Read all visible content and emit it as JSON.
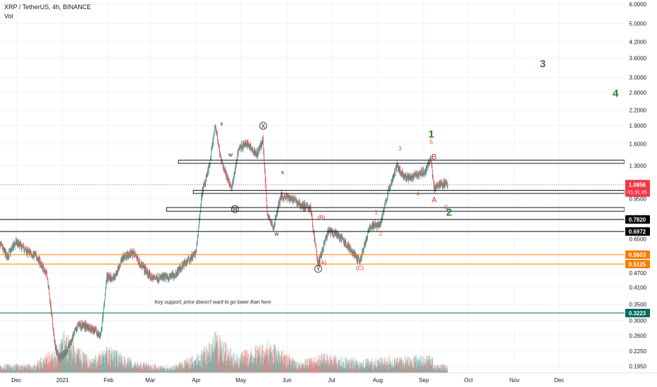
{
  "header": {
    "title": "XRP / TetherUS, 4h, BINANCE",
    "volume_label": "Vol"
  },
  "chart_data": {
    "type": "candlestick",
    "symbol": "XRP / TetherUS",
    "interval": "4h",
    "exchange": "BINANCE",
    "scale": "log",
    "ylim": [
      0.19,
      6.2
    ],
    "y_ticks": [
      "6.0000",
      "5.0000",
      "4.2000",
      "3.6000",
      "3.0000",
      "2.6000",
      "2.2000",
      "1.9000",
      "1.6000",
      "1.3000",
      "0.9500",
      "0.8000",
      "0.6500",
      "0.5500",
      "0.4700",
      "0.4100",
      "0.3500",
      "0.3000",
      "0.2600",
      "0.2250",
      "0.1950"
    ],
    "x_ticks": [
      "Dec",
      "2021",
      "Feb",
      "Mar",
      "Apr",
      "May",
      "Jun",
      "Jul",
      "Aug",
      "Sep",
      "Oct",
      "Nov",
      "Dec"
    ],
    "x_tick_dates": [
      "2020-12-01",
      "2021-01-01",
      "2021-02-01",
      "2021-03-01",
      "2021-04-01",
      "2021-05-01",
      "2021-06-01",
      "2021-07-01",
      "2021-08-01",
      "2021-09-01",
      "2021-10-01",
      "2021-11-01",
      "2021-12-01"
    ],
    "x_range": [
      "2020-11-20",
      "2022-01-14"
    ],
    "last_price": {
      "value": "1.0856",
      "countdown": "01:31:45"
    },
    "price_path": [
      [
        "2020-11-20",
        0.62
      ],
      [
        "2020-11-25",
        0.55
      ],
      [
        "2020-12-01",
        0.63
      ],
      [
        "2020-12-08",
        0.58
      ],
      [
        "2020-12-15",
        0.55
      ],
      [
        "2020-12-22",
        0.46
      ],
      [
        "2020-12-27",
        0.24
      ],
      [
        "2020-12-30",
        0.21
      ],
      [
        "2021-01-05",
        0.23
      ],
      [
        "2021-01-12",
        0.29
      ],
      [
        "2021-01-20",
        0.28
      ],
      [
        "2021-01-27",
        0.26
      ],
      [
        "2021-01-31",
        0.45
      ],
      [
        "2021-02-05",
        0.45
      ],
      [
        "2021-02-11",
        0.55
      ],
      [
        "2021-02-18",
        0.57
      ],
      [
        "2021-02-24",
        0.5
      ],
      [
        "2021-03-02",
        0.45
      ],
      [
        "2021-03-10",
        0.45
      ],
      [
        "2021-03-17",
        0.46
      ],
      [
        "2021-03-25",
        0.52
      ],
      [
        "2021-04-01",
        0.57
      ],
      [
        "2021-04-05",
        1.0
      ],
      [
        "2021-04-10",
        1.3
      ],
      [
        "2021-04-14",
        1.9
      ],
      [
        "2021-04-18",
        1.35
      ],
      [
        "2021-04-25",
        1.05
      ],
      [
        "2021-04-30",
        1.55
      ],
      [
        "2021-05-06",
        1.6
      ],
      [
        "2021-05-12",
        1.45
      ],
      [
        "2021-05-16",
        1.65
      ],
      [
        "2021-05-19",
        0.82
      ],
      [
        "2021-05-23",
        0.72
      ],
      [
        "2021-05-28",
        0.98
      ],
      [
        "2021-06-04",
        0.96
      ],
      [
        "2021-06-10",
        0.9
      ],
      [
        "2021-06-17",
        0.87
      ],
      [
        "2021-06-22",
        0.51
      ],
      [
        "2021-06-29",
        0.7
      ],
      [
        "2021-07-06",
        0.67
      ],
      [
        "2021-07-13",
        0.6
      ],
      [
        "2021-07-20",
        0.52
      ],
      [
        "2021-07-27",
        0.73
      ],
      [
        "2021-08-03",
        0.75
      ],
      [
        "2021-08-08",
        1.0
      ],
      [
        "2021-08-14",
        1.3
      ],
      [
        "2021-08-20",
        1.15
      ],
      [
        "2021-08-27",
        1.2
      ],
      [
        "2021-09-02",
        1.22
      ],
      [
        "2021-09-06",
        1.4
      ],
      [
        "2021-09-08",
        1.05
      ],
      [
        "2021-09-12",
        1.1
      ],
      [
        "2021-09-17",
        1.0856
      ]
    ],
    "volume_profile": [
      [
        "2020-12-15",
        0.3
      ],
      [
        "2020-12-28",
        0.55
      ],
      [
        "2021-01-02",
        0.9
      ],
      [
        "2021-01-20",
        0.3
      ],
      [
        "2021-02-01",
        0.6
      ],
      [
        "2021-02-20",
        0.25
      ],
      [
        "2021-03-15",
        0.15
      ],
      [
        "2021-04-05",
        0.5
      ],
      [
        "2021-04-14",
        0.9
      ],
      [
        "2021-04-28",
        0.4
      ],
      [
        "2021-05-19",
        0.7
      ],
      [
        "2021-06-10",
        0.25
      ],
      [
        "2021-06-22",
        0.45
      ],
      [
        "2021-07-20",
        0.3
      ],
      [
        "2021-08-08",
        0.35
      ],
      [
        "2021-09-07",
        0.4
      ]
    ],
    "horizontal_levels": [
      {
        "price": 0.782,
        "label": "0.7820",
        "color": "#000000"
      },
      {
        "price": 0.6972,
        "label": "0.6972",
        "color": "#000000"
      },
      {
        "price": 0.5603,
        "label": "0.5603",
        "color": "#f57c00"
      },
      {
        "price": 0.5125,
        "label": "0.5125",
        "color": "#f57c00"
      },
      {
        "price": 0.3223,
        "label": "0.3223",
        "color": "#00695c"
      }
    ],
    "zones": [
      {
        "top": 1.37,
        "bottom": 1.33,
        "start": "2021-03-20"
      },
      {
        "top": 1.03,
        "bottom": 1.0,
        "start": "2021-03-30"
      },
      {
        "top": 0.875,
        "bottom": 0.845,
        "start": "2021-03-12"
      }
    ],
    "wave_labels": [
      {
        "text": "x",
        "date": "2021-04-18",
        "price": 1.9,
        "color": "#131722"
      },
      {
        "text": "w",
        "date": "2021-04-24",
        "price": 1.42,
        "color": "#131722"
      },
      {
        "text": "X",
        "date": "2021-05-16",
        "price": 1.86,
        "color": "#131722",
        "circled": true
      },
      {
        "text": "x",
        "date": "2021-05-29",
        "price": 1.2,
        "color": "#131722"
      },
      {
        "text": "w",
        "date": "2021-05-25",
        "price": 0.67,
        "color": "#131722"
      },
      {
        "text": "W",
        "date": "2021-04-27",
        "price": 0.845,
        "color": "#131722",
        "circled": true
      },
      {
        "text": "Y",
        "date": "2021-06-22",
        "price": 0.48,
        "color": "#131722",
        "circled": true
      },
      {
        "text": "(B)",
        "date": "2021-06-24",
        "price": 0.78,
        "color": "#d32f2f"
      },
      {
        "text": "(A)",
        "date": "2021-06-25",
        "price": 0.51,
        "color": "#d32f2f"
      },
      {
        "text": "(C)",
        "date": "2021-07-20",
        "price": 0.485,
        "color": "#d32f2f"
      },
      {
        "text": "1",
        "date": "2021-07-31",
        "price": 0.82,
        "color": "#e65100"
      },
      {
        "text": "2",
        "date": "2021-08-03",
        "price": 0.67,
        "color": "#e65100"
      },
      {
        "text": "3",
        "date": "2021-08-16",
        "price": 1.5,
        "color": "#e65100"
      },
      {
        "text": "4",
        "date": "2021-08-28",
        "price": 0.98,
        "color": "#e65100"
      },
      {
        "text": "5",
        "date": "2021-09-06",
        "price": 1.6,
        "color": "#e65100"
      },
      {
        "text": "1",
        "date": "2021-09-06",
        "price": 1.7,
        "color": "#2e7d32",
        "size": "big"
      },
      {
        "text": "B",
        "date": "2021-09-08",
        "price": 1.38,
        "color": "#d32f2f",
        "size": "mid"
      },
      {
        "text": "A",
        "date": "2021-09-08",
        "price": 0.92,
        "color": "#d32f2f",
        "size": "mid"
      },
      {
        "text": "C",
        "date": "2021-09-16",
        "price": 0.86,
        "color": "#d32f2f"
      },
      {
        "text": "2",
        "date": "2021-09-18",
        "price": 0.81,
        "color": "#2e7d32",
        "size": "big"
      },
      {
        "text": "3",
        "date": "2021-11-20",
        "price": 3.3,
        "color": "#2e7d32",
        "size": "big"
      },
      {
        "text": "4",
        "date": "2022-01-08",
        "price": 2.5,
        "color": "#2e7d32",
        "size": "big"
      }
    ],
    "annotations": [
      {
        "text": "Key support; price doesn't want to go lower than here",
        "date": "2021-03-04",
        "price": 0.352
      }
    ],
    "colors": {
      "up": "#26a69a",
      "down": "#ef5350",
      "last_price": "#f23645",
      "grid": "#f0f3fa"
    }
  }
}
